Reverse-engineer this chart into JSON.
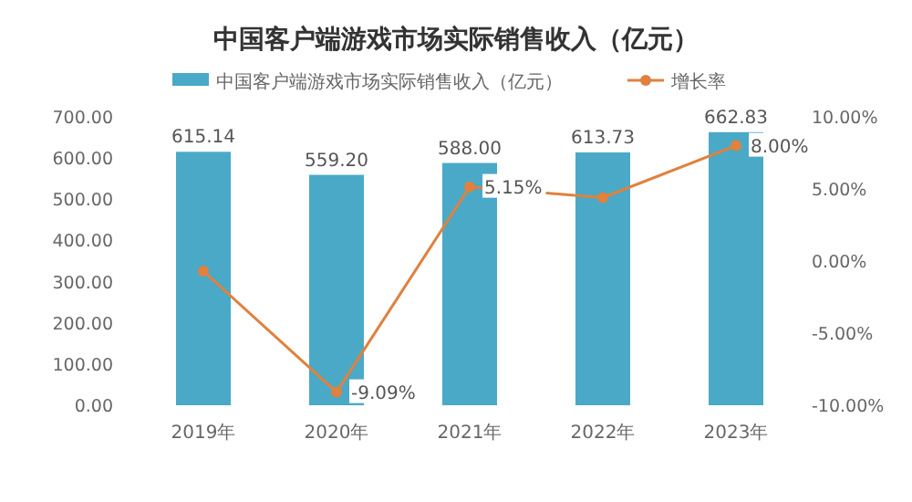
{
  "chart_data": {
    "type": "bar",
    "title": "中国客户端游戏市场实际销售收入（亿元）",
    "categories": [
      "2019年",
      "2020年",
      "2021年",
      "2022年",
      "2023年"
    ],
    "series": [
      {
        "name": "中国客户端游戏市场实际销售收入（亿元）",
        "color": "#4aa9c6",
        "values": [
          615.14,
          559.2,
          588.0,
          613.73,
          662.83
        ],
        "value_labels": [
          "615.14",
          "559.20",
          "588.00",
          "613.73",
          "662.83"
        ]
      },
      {
        "name": "增长率",
        "type": "line",
        "axis": "y2",
        "color": "#e0813e",
        "marker": "circle",
        "values": [
          -0.7,
          -9.09,
          5.15,
          4.4,
          8.0
        ],
        "value_labels": [
          null,
          "-9.09%",
          "5.15%",
          null,
          "8.00%"
        ]
      }
    ],
    "ylim": [
      0,
      700
    ],
    "yticks": [
      {
        "value": 0,
        "label": "0.00"
      },
      {
        "value": 100,
        "label": "100.00"
      },
      {
        "value": 200,
        "label": "200.00"
      },
      {
        "value": 300,
        "label": "300.00"
      },
      {
        "value": 400,
        "label": "400.00"
      },
      {
        "value": 500,
        "label": "500.00"
      },
      {
        "value": 600,
        "label": "600.00"
      },
      {
        "value": 700,
        "label": "700.00"
      }
    ],
    "y2lim": [
      -10,
      10
    ],
    "y2ticks": [
      {
        "value": -10,
        "label": "-10.00%"
      },
      {
        "value": -5,
        "label": "-5.00%"
      },
      {
        "value": 0,
        "label": "0.00%"
      },
      {
        "value": 5,
        "label": "5.00%"
      },
      {
        "value": 10,
        "label": "10.00%"
      }
    ],
    "legend": "top",
    "grid": false
  }
}
